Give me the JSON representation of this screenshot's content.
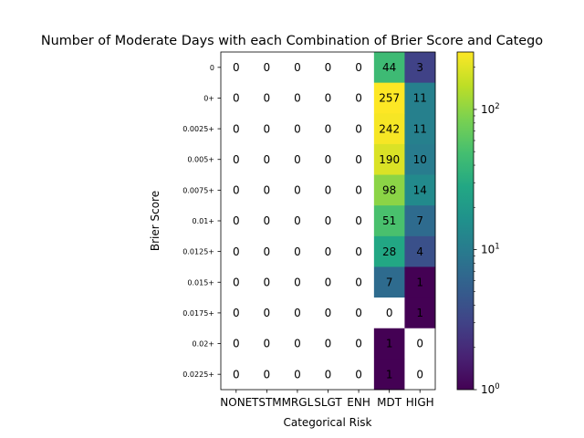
{
  "chart_data": {
    "type": "heatmap",
    "title": "Number of Moderate Days with each Combination of Brier Score and Catego",
    "xlabel": "Categorical Risk",
    "ylabel": "Brier Score",
    "x_categories": [
      "NONE",
      "TSTM",
      "MRGL",
      "SLGT",
      "ENH",
      "MDT",
      "HIGH"
    ],
    "y_categories": [
      "0",
      "0+",
      "0.0025+",
      "0.005+",
      "0.0075+",
      "0.01+",
      "0.0125+",
      "0.015+",
      "0.0175+",
      "0.02+",
      "0.0225+"
    ],
    "values": [
      [
        0,
        0,
        0,
        0,
        0,
        44,
        3
      ],
      [
        0,
        0,
        0,
        0,
        0,
        257,
        11
      ],
      [
        0,
        0,
        0,
        0,
        0,
        242,
        11
      ],
      [
        0,
        0,
        0,
        0,
        0,
        190,
        10
      ],
      [
        0,
        0,
        0,
        0,
        0,
        98,
        14
      ],
      [
        0,
        0,
        0,
        0,
        0,
        51,
        7
      ],
      [
        0,
        0,
        0,
        0,
        0,
        28,
        4
      ],
      [
        0,
        0,
        0,
        0,
        0,
        7,
        1
      ],
      [
        0,
        0,
        0,
        0,
        0,
        0,
        1
      ],
      [
        0,
        0,
        0,
        0,
        0,
        1,
        0
      ],
      [
        0,
        0,
        0,
        0,
        0,
        1,
        0
      ]
    ],
    "colormap": "viridis",
    "color_scale": "log",
    "color_range": [
      1,
      257
    ],
    "colorbar_ticks": [
      {
        "value": 1,
        "base": "10",
        "exp": "0"
      },
      {
        "value": 10,
        "base": "10",
        "exp": "1"
      },
      {
        "value": 100,
        "base": "10",
        "exp": "2"
      }
    ],
    "zero_color": "#ffffff"
  }
}
